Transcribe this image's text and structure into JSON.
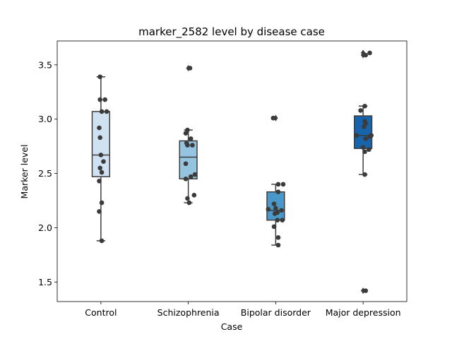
{
  "chart_data": {
    "type": "box",
    "title": "marker_2582 level by disease case",
    "xlabel": "Case",
    "ylabel": "Marker level",
    "ylim": [
      1.32,
      3.72
    ],
    "yticks": [
      "1.5",
      "2.0",
      "2.5",
      "3.0",
      "3.5"
    ],
    "grid": false,
    "legend": "none",
    "categories": [
      "Control",
      "Schizophrenia",
      "Bipolar disorder",
      "Major depression"
    ],
    "colors": [
      "#d0e1f2",
      "#94c4df",
      "#4a98c9",
      "#1764ab"
    ],
    "boxes": [
      {
        "whisker_low": 1.88,
        "q1": 2.47,
        "median": 2.67,
        "q3": 3.07,
        "whisker_high": 3.39,
        "outliers": []
      },
      {
        "whisker_low": 2.23,
        "q1": 2.45,
        "median": 2.65,
        "q3": 2.8,
        "whisker_high": 2.9,
        "outliers": [
          3.47
        ]
      },
      {
        "whisker_low": 1.84,
        "q1": 2.07,
        "median": 2.16,
        "q3": 2.33,
        "whisker_high": 2.4,
        "outliers": [
          3.01
        ]
      },
      {
        "whisker_low": 2.49,
        "q1": 2.73,
        "median": 2.85,
        "q3": 3.03,
        "whisker_high": 3.12,
        "outliers": [
          1.42,
          3.59,
          3.61
        ]
      }
    ],
    "points": [
      [
        1.88,
        2.15,
        2.23,
        2.43,
        2.51,
        2.55,
        2.61,
        2.67,
        2.83,
        2.92,
        3.07,
        3.07,
        3.18,
        3.18,
        3.39
      ],
      [
        2.23,
        2.27,
        2.3,
        2.45,
        2.47,
        2.49,
        2.59,
        2.76,
        2.76,
        2.78,
        2.82,
        2.87,
        2.9,
        3.47
      ],
      [
        1.84,
        1.91,
        2.01,
        2.07,
        2.07,
        2.13,
        2.14,
        2.16,
        2.17,
        2.18,
        2.22,
        2.33,
        2.4,
        2.4,
        3.01
      ],
      [
        1.42,
        2.49,
        2.7,
        2.72,
        2.74,
        2.82,
        2.84,
        2.85,
        2.85,
        2.93,
        2.96,
        2.98,
        3.08,
        3.12,
        3.59,
        3.61
      ]
    ]
  }
}
